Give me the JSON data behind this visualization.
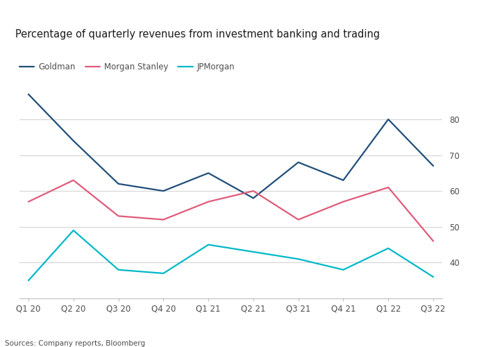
{
  "title": "Percentage of quarterly revenues from investment banking and trading",
  "x_labels": [
    "Q1 20",
    "Q2 20",
    "Q3 20",
    "Q4 20",
    "Q1 21",
    "Q2 21",
    "Q3 21",
    "Q4 21",
    "Q1 22",
    "Q3 22"
  ],
  "goldman": {
    "name": "Goldman",
    "color": "#1f4e79",
    "values": [
      87,
      74,
      62,
      60,
      65,
      58,
      68,
      63,
      80,
      67
    ]
  },
  "morgan_stanley": {
    "name": "Morgan Stanley",
    "color": "#e05a7a",
    "values": [
      57,
      63,
      53,
      52,
      57,
      60,
      52,
      57,
      61,
      46
    ]
  },
  "jpmorgan": {
    "name": "JPMorgan",
    "color": "#00b8c8",
    "values": [
      35,
      49,
      38,
      37,
      45,
      43,
      41,
      38,
      44,
      36
    ]
  },
  "ylim": [
    30,
    92
  ],
  "yticks": [
    40,
    50,
    60,
    70,
    80
  ],
  "source_text": "Sources: Company reports, Bloomberg",
  "background_color": "#ffffff",
  "grid_color": "#d0d0d0",
  "axis_color": "#bfbfbf",
  "text_color": "#4d4d4d",
  "title_color": "#1a1a1a",
  "title_fontsize": 10.5,
  "label_fontsize": 8.5,
  "legend_fontsize": 8.5,
  "source_fontsize": 7.5
}
